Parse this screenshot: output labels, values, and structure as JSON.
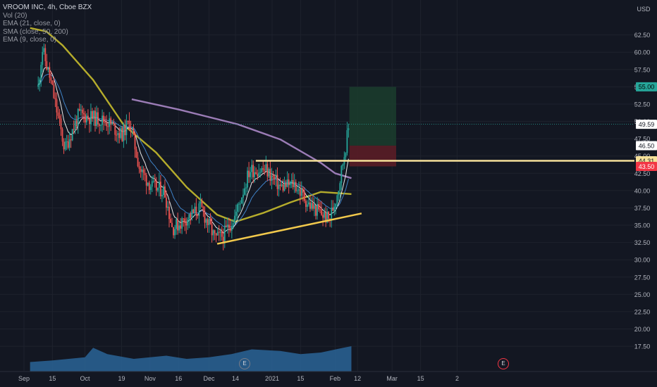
{
  "legend": {
    "symbol": "VROOM INC, 4h, Cboe BZX",
    "indicators": [
      "Vol (20)",
      "EMA (21, close, 0)",
      "SMA (close, 50, 200)",
      "EMA (9, close, 0)"
    ]
  },
  "earnings_marker": "E",
  "colors": {
    "background": "#131722",
    "up": "#26a69a",
    "down": "#ef5350",
    "sma50": "#b5ac2c",
    "sma200": "#9b7cb6",
    "ema21": "#3f82c7",
    "ema9": "#e8e8e8",
    "trendline": "#f2c94c",
    "resistance": "#f6e19a",
    "volume_area": "#2a6496",
    "target_zone": "#1b3b2c",
    "stop_zone": "#5a1d26",
    "last_price_tag": "#ffffff",
    "stop_tag": "#f23645",
    "target_tag": "#26a69a"
  },
  "chart_data": {
    "type": "candlestick",
    "title": "VROOM INC, 4h, Cboe BZX",
    "y_axis_unit": "USD",
    "ylim": [
      17.0,
      64.5
    ],
    "y_ticks": [
      17.5,
      20.0,
      22.5,
      25.0,
      27.5,
      30.0,
      32.5,
      35.0,
      37.5,
      40.0,
      42.5,
      45.0,
      47.5,
      50.0,
      52.5,
      55.0,
      57.5,
      60.0,
      62.5
    ],
    "x_ticks": [
      "Sep",
      "15",
      "Oct",
      "19",
      "Nov",
      "16",
      "Dec",
      "14",
      "2021",
      "15",
      "Feb",
      "12",
      "Mar",
      "15",
      "2"
    ],
    "price_tags": [
      {
        "label": "55.00",
        "value": 55.0,
        "kind": "target"
      },
      {
        "label": "49.59",
        "value": 49.59,
        "kind": "last"
      },
      {
        "label": "46.50",
        "value": 46.5,
        "kind": "entry"
      },
      {
        "label": "44.31",
        "value": 44.31,
        "kind": "resistance"
      },
      {
        "label": "43.50",
        "value": 43.5,
        "kind": "stop"
      }
    ],
    "price_path": [
      {
        "date": "2020-09-08",
        "close": 55.0
      },
      {
        "date": "2020-09-10",
        "close": 60.5
      },
      {
        "date": "2020-09-14",
        "close": 56.0
      },
      {
        "date": "2020-09-21",
        "close": 46.0
      },
      {
        "date": "2020-09-28",
        "close": 51.0
      },
      {
        "date": "2020-10-05",
        "close": 50.5
      },
      {
        "date": "2020-10-12",
        "close": 50.0
      },
      {
        "date": "2020-10-19",
        "close": 48.0
      },
      {
        "date": "2020-10-23",
        "close": 50.0
      },
      {
        "date": "2020-10-28",
        "close": 43.0
      },
      {
        "date": "2020-11-03",
        "close": 40.5
      },
      {
        "date": "2020-11-09",
        "close": 40.0
      },
      {
        "date": "2020-11-13",
        "close": 34.5
      },
      {
        "date": "2020-11-20",
        "close": 36.0
      },
      {
        "date": "2020-11-27",
        "close": 37.5
      },
      {
        "date": "2020-12-04",
        "close": 33.0
      },
      {
        "date": "2020-12-08",
        "close": 33.5
      },
      {
        "date": "2020-12-14",
        "close": 36.5
      },
      {
        "date": "2020-12-21",
        "close": 43.0
      },
      {
        "date": "2020-12-29",
        "close": 43.0
      },
      {
        "date": "2021-01-05",
        "close": 40.5
      },
      {
        "date": "2021-01-12",
        "close": 41.0
      },
      {
        "date": "2021-01-19",
        "close": 38.0
      },
      {
        "date": "2021-01-26",
        "close": 36.5
      },
      {
        "date": "2021-01-29",
        "close": 35.8
      },
      {
        "date": "2021-02-01",
        "close": 38.5
      },
      {
        "date": "2021-02-03",
        "close": 41.0
      },
      {
        "date": "2021-02-05",
        "close": 44.5
      },
      {
        "date": "2021-02-08",
        "close": 49.59
      }
    ],
    "sma200": [
      {
        "date": "2020-10-24",
        "value": 53.2
      },
      {
        "date": "2020-11-15",
        "value": 51.8
      },
      {
        "date": "2020-12-15",
        "value": 49.6
      },
      {
        "date": "2021-01-05",
        "value": 47.4
      },
      {
        "date": "2021-01-25",
        "value": 44.0
      },
      {
        "date": "2021-02-01",
        "value": 42.5
      },
      {
        "date": "2021-02-09",
        "value": 41.8
      }
    ],
    "sma50": [
      {
        "date": "2020-09-04",
        "value": 63.5
      },
      {
        "date": "2020-09-12",
        "value": 63.0
      },
      {
        "date": "2020-09-20",
        "value": 61.0
      },
      {
        "date": "2020-10-05",
        "value": 56.0
      },
      {
        "date": "2020-10-20",
        "value": 49.5
      },
      {
        "date": "2020-11-05",
        "value": 45.5
      },
      {
        "date": "2020-11-20",
        "value": 40.5
      },
      {
        "date": "2020-12-05",
        "value": 36.5
      },
      {
        "date": "2020-12-14",
        "value": 35.5
      },
      {
        "date": "2020-12-28",
        "value": 36.8
      },
      {
        "date": "2021-01-10",
        "value": 38.3
      },
      {
        "date": "2021-01-25",
        "value": 39.8
      },
      {
        "date": "2021-02-09",
        "value": 39.5
      }
    ],
    "trendline": {
      "from": {
        "date": "2020-12-05",
        "value": 32.3
      },
      "to": {
        "date": "2021-02-14",
        "value": 36.7
      }
    },
    "resistance_line": {
      "from": {
        "date": "2020-12-24",
        "value": 44.31
      }
    },
    "target_zone": {
      "from_date": "2021-02-08",
      "to_date": "2021-03-03",
      "low": 46.5,
      "high": 55.0
    },
    "stop_zone": {
      "from_date": "2021-02-08",
      "to_date": "2021-03-03",
      "low": 43.5,
      "high": 46.5
    },
    "volume_profile": [
      {
        "date": "2020-09-04",
        "value": 0.3
      },
      {
        "date": "2020-09-15",
        "value": 0.35
      },
      {
        "date": "2020-10-01",
        "value": 0.45
      },
      {
        "date": "2020-10-05",
        "value": 0.75
      },
      {
        "date": "2020-10-12",
        "value": 0.55
      },
      {
        "date": "2020-10-25",
        "value": 0.4
      },
      {
        "date": "2020-11-10",
        "value": 0.5
      },
      {
        "date": "2020-11-20",
        "value": 0.4
      },
      {
        "date": "2020-12-01",
        "value": 0.45
      },
      {
        "date": "2020-12-12",
        "value": 0.55
      },
      {
        "date": "2020-12-22",
        "value": 0.7
      },
      {
        "date": "2021-01-05",
        "value": 0.65
      },
      {
        "date": "2021-01-15",
        "value": 0.55
      },
      {
        "date": "2021-01-25",
        "value": 0.6
      },
      {
        "date": "2021-02-05",
        "value": 0.75
      },
      {
        "date": "2021-02-09",
        "value": 0.8
      }
    ],
    "earnings_dates": [
      "2020-11-10",
      "2021-02-12"
    ]
  }
}
